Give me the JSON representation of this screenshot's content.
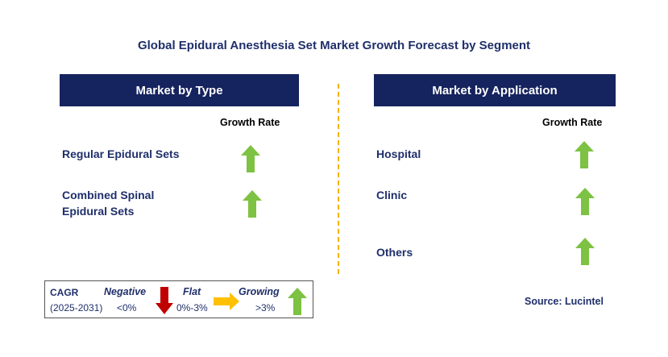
{
  "title": "Global Epidural Anesthesia Set Market Growth Forecast by Segment",
  "left_panel": {
    "header": "Market by Type",
    "growth_header": "Growth Rate",
    "items": [
      {
        "label_lines": [
          "Regular Epidural Sets"
        ],
        "trend": "growing"
      },
      {
        "label_lines": [
          "Combined Spinal",
          "Epidural Sets"
        ],
        "trend": "growing"
      }
    ]
  },
  "right_panel": {
    "header": "Market by Application",
    "growth_header": "Growth Rate",
    "items": [
      {
        "label_lines": [
          "Hospital"
        ],
        "trend": "growing"
      },
      {
        "label_lines": [
          "Clinic"
        ],
        "trend": "growing"
      },
      {
        "label_lines": [
          "Others"
        ],
        "trend": "growing"
      }
    ]
  },
  "legend": {
    "cagr_label": "CAGR",
    "period": "(2025-2031)",
    "negative": {
      "label": "Negative",
      "range": "<0%"
    },
    "flat": {
      "label": "Flat",
      "range": "0%-3%"
    },
    "growing": {
      "label": "Growing",
      "range": ">3%"
    }
  },
  "source": "Source: Lucintel",
  "colors": {
    "header_bg": "#15235e",
    "text_navy": "#1f2f6b",
    "arrow_green": "#7dc242",
    "arrow_red": "#c00000",
    "arrow_orange": "#ffc000",
    "divider": "#f0b400"
  },
  "icons": {
    "growing": "green-up-arrow-icon",
    "negative": "red-down-arrow-icon",
    "flat": "orange-right-arrow-icon"
  }
}
